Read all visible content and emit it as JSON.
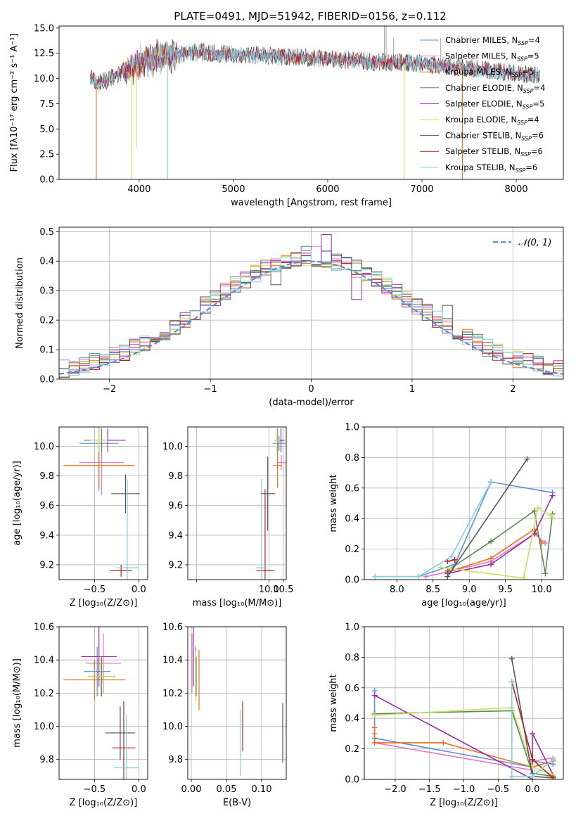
{
  "figure": {
    "title": "PLATE=0491, MJD=51942, FIBERID=0156, z=0.112",
    "colors": {
      "Chabrier MILES": "#5b8fd6",
      "Salpeter MILES": "#e377c2",
      "Kroupa MILES": "#e8701a",
      "Chabrier ELODIE": "#5a8a5a",
      "Salpeter ELODIE": "#9d2ca8",
      "Kroupa ELODIE": "#c8e05a",
      "Chabrier STELIB": "#555555",
      "Salpeter STELIB": "#b22222",
      "Kroupa STELIB": "#7fd0e0"
    }
  },
  "chart_data": [
    {
      "id": "spectrum",
      "type": "line",
      "xlabel": "wavelength [Angstrom, rest frame]",
      "ylabel": "Flux [fλ10⁻¹⁷ erg cm⁻² s⁻¹ A⁻¹]",
      "xlim": [
        3150,
        8500
      ],
      "ylim": [
        0,
        15.2
      ],
      "xticks": [
        4000,
        5000,
        6000,
        7000,
        8000
      ],
      "yticks": [
        0.0,
        2.5,
        5.0,
        7.5,
        10.0,
        12.5,
        15.0
      ],
      "xtick_labels": [
        "4000",
        "5000",
        "6000",
        "7000",
        "8000"
      ],
      "ytick_labels": [
        "0.0",
        "2.5",
        "5.0",
        "7.5",
        "10.0",
        "12.5",
        "15.0"
      ],
      "legend_position": "upper-right",
      "legend": [
        {
          "name": "Chabrier MILES",
          "sub": "4"
        },
        {
          "name": "Salpeter MILES",
          "sub": "5"
        },
        {
          "name": "Kroupa MILES",
          "sub": "5"
        },
        {
          "name": "Chabrier ELODIE",
          "sub": "4"
        },
        {
          "name": "Salpeter ELODIE",
          "sub": "5"
        },
        {
          "name": "Kroupa ELODIE",
          "sub": "4"
        },
        {
          "name": "Chabrier STELIB",
          "sub": "6"
        },
        {
          "name": "Salpeter STELIB",
          "sub": "6"
        },
        {
          "name": "Kroupa STELIB",
          "sub": "6"
        }
      ],
      "continuum": [
        [
          3480,
          10.2
        ],
        [
          3550,
          9.6
        ],
        [
          3650,
          9.8
        ],
        [
          3750,
          10.3
        ],
        [
          3850,
          10.8
        ],
        [
          3950,
          11.3
        ],
        [
          4100,
          12.0
        ],
        [
          4300,
          12.3
        ],
        [
          4500,
          12.5
        ],
        [
          4700,
          12.6
        ],
        [
          4900,
          12.4
        ],
        [
          5100,
          12.4
        ],
        [
          5300,
          12.3
        ],
        [
          5500,
          12.2
        ],
        [
          5700,
          12.1
        ],
        [
          5900,
          12.0
        ],
        [
          6100,
          11.9
        ],
        [
          6300,
          11.8
        ],
        [
          6500,
          11.6
        ],
        [
          6700,
          11.6
        ],
        [
          6900,
          11.5
        ],
        [
          7100,
          11.4
        ],
        [
          7300,
          11.2
        ],
        [
          7500,
          11.0
        ],
        [
          7700,
          10.8
        ],
        [
          7900,
          10.6
        ],
        [
          8100,
          10.4
        ],
        [
          8250,
          10.3
        ]
      ],
      "dips": [
        {
          "x": 3545,
          "y": 0.0,
          "series": "Kroupa MILES"
        },
        {
          "x": 3920,
          "y": 0.0,
          "series": "Kroupa ELODIE"
        },
        {
          "x": 3970,
          "y": 3.2,
          "series": "Kroupa ELODIE"
        },
        {
          "x": 4300,
          "y": 0.0,
          "series": "Kroupa STELIB"
        },
        {
          "x": 6810,
          "y": 0.0,
          "series": "Kroupa ELODIE"
        },
        {
          "x": 7430,
          "y": 0.0,
          "series": "Kroupa MILES"
        }
      ],
      "spikes": [
        {
          "x": 6600,
          "y": 15.2
        },
        {
          "x": 6620,
          "y": 15.2
        },
        {
          "x": 6700,
          "y": 14.0
        },
        {
          "x": 7200,
          "y": 14.0
        }
      ]
    },
    {
      "id": "residuals",
      "type": "bar",
      "xlabel": "(data-model)/error",
      "ylabel": "Normed distribution",
      "xlim": [
        -2.5,
        2.5
      ],
      "ylim": [
        0,
        0.515
      ],
      "xticks": [
        -2,
        -1,
        0,
        1,
        2
      ],
      "yticks": [
        0.0,
        0.1,
        0.2,
        0.3,
        0.4,
        0.5
      ],
      "xtick_labels": [
        "−2",
        "−1",
        "0",
        "1",
        "2"
      ],
      "ytick_labels": [
        "0.0",
        "0.1",
        "0.2",
        "0.3",
        "0.4",
        "0.5"
      ],
      "bin_width": 0.1,
      "legend_position": "upper-right",
      "reference": {
        "name": "𝒩(0, 1)",
        "mean": 0,
        "sigma": 1
      },
      "highlight_bins": [
        {
          "series": "Salpeter ELODIE",
          "x": -0.65,
          "value": 0.36
        },
        {
          "series": "Salpeter ELODIE",
          "x": 0.15,
          "value": 0.49
        },
        {
          "series": "Salpeter ELODIE",
          "x": 0.45,
          "value": 0.27
        },
        {
          "series": "Salpeter MILES",
          "x": 0.05,
          "value": 0.45
        },
        {
          "series": "Chabrier ELODIE",
          "x": -0.05,
          "value": 0.45
        },
        {
          "series": "Chabrier STELIB",
          "x": 1.35,
          "value": 0.25
        },
        {
          "series": "Chabrier STELIB",
          "x": -0.35,
          "value": 0.32
        }
      ]
    },
    {
      "id": "age-vs-Z",
      "type": "scatter",
      "xlabel": "Z [log₁₀(Z/Z⊙)]",
      "ylabel": "age  [log₁₀(age/yr)]",
      "xlim": [
        -0.9,
        0.1
      ],
      "ylim": [
        9.1,
        10.13
      ],
      "xticks": [
        -0.5,
        0.0
      ],
      "yticks": [
        9.2,
        9.4,
        9.6,
        9.8,
        10.0
      ],
      "xtick_labels": [
        "−0.5",
        "0.0"
      ],
      "ytick_labels": [
        "9.2",
        "9.4",
        "9.6",
        "9.8",
        "10.0"
      ],
      "points": [
        {
          "series": "Chabrier MILES",
          "x": -0.45,
          "xerr": 0.22,
          "y": 10.02,
          "yerr": 0.32
        },
        {
          "series": "Salpeter MILES",
          "x": -0.42,
          "xerr": 0.25,
          "y": 9.89,
          "yerr": 0.22
        },
        {
          "series": "Kroupa MILES",
          "x": -0.45,
          "xerr": 0.4,
          "y": 9.87,
          "yerr": 0.15
        },
        {
          "series": "Chabrier ELODIE",
          "x": -0.42,
          "xerr": 0.2,
          "y": 10.04,
          "yerr": 0.08
        },
        {
          "series": "Salpeter ELODIE",
          "x": -0.35,
          "xerr": 0.2,
          "y": 10.04,
          "yerr": 0.08
        },
        {
          "series": "Kroupa ELODIE",
          "x": -0.45,
          "xerr": 0.1,
          "y": 10.04,
          "yerr": 0.08
        },
        {
          "series": "Chabrier STELIB",
          "x": -0.15,
          "xerr": 0.16,
          "y": 9.68,
          "yerr": 0.13
        },
        {
          "series": "Salpeter STELIB",
          "x": -0.2,
          "xerr": 0.12,
          "y": 9.16,
          "yerr": 0.04
        },
        {
          "series": "Kroupa STELIB",
          "x": -0.13,
          "xerr": 0.12,
          "y": 9.18,
          "yerr": 0.6
        }
      ]
    },
    {
      "id": "age-vs-mass",
      "type": "scatter",
      "xlabel": "mass [log₁₀(M/M⊙)]",
      "ylabel": "",
      "xlim": [
        7.2,
        10.6
      ],
      "ylim": [
        9.1,
        10.13
      ],
      "xticks": [
        7.5,
        10.0,
        10.5
      ],
      "yticks": [
        9.2,
        9.4,
        9.6,
        9.8,
        10.0
      ],
      "xtick_labels": [
        "",
        "10.0",
        "10.5"
      ],
      "ytick_labels": [
        "9.2",
        "9.4",
        "9.6",
        "9.8",
        "10.0"
      ],
      "points": [
        {
          "series": "Chabrier MILES",
          "x": 10.35,
          "xerr": 0.22,
          "y": 10.02,
          "yerr": 0.05
        },
        {
          "series": "Salpeter MILES",
          "x": 10.43,
          "xerr": 0.15,
          "y": 9.89,
          "yerr": 0.05
        },
        {
          "series": "Kroupa MILES",
          "x": 10.3,
          "xerr": 0.15,
          "y": 9.87,
          "yerr": 0.15
        },
        {
          "series": "Chabrier ELODIE",
          "x": 10.3,
          "xerr": 0.12,
          "y": 10.04,
          "yerr": 0.08
        },
        {
          "series": "Salpeter ELODIE",
          "x": 10.42,
          "xerr": 0.12,
          "y": 10.04,
          "yerr": 0.08
        },
        {
          "series": "Kroupa ELODIE",
          "x": 10.28,
          "xerr": 0.1,
          "y": 10.04,
          "yerr": 0.08
        },
        {
          "series": "Chabrier STELIB",
          "x": 9.96,
          "xerr": 0.25,
          "y": 9.68,
          "yerr": 0.25
        },
        {
          "series": "Salpeter STELIB",
          "x": 9.87,
          "xerr": 0.3,
          "y": 9.16,
          "yerr": 0.55
        },
        {
          "series": "Kroupa STELIB",
          "x": 9.75,
          "xerr": 0.2,
          "y": 9.18,
          "yerr": 0.6
        }
      ]
    },
    {
      "id": "weight-vs-age",
      "type": "line",
      "xlabel": "age  [log₁₀(age/yr)]",
      "ylabel": "mass weight",
      "xlim": [
        7.55,
        10.3
      ],
      "ylim": [
        0,
        1.0
      ],
      "xticks": [
        8.0,
        8.5,
        9.0,
        9.5,
        10.0
      ],
      "yticks": [
        0.0,
        0.2,
        0.4,
        0.6,
        0.8,
        1.0
      ],
      "xtick_labels": [
        "8.0",
        "8.5",
        "9.0",
        "9.5",
        "10.0"
      ],
      "ytick_labels": [
        "0.0",
        "0.2",
        "0.4",
        "0.6",
        "0.8",
        "1.0"
      ],
      "series": [
        {
          "name": "Chabrier MILES",
          "x": [
            7.7,
            8.3,
            8.8,
            9.3,
            10.15
          ],
          "y": [
            0.02,
            0.02,
            0.1,
            0.64,
            0.57
          ]
        },
        {
          "name": "Salpeter MILES",
          "x": [
            8.4,
            8.7,
            9.3,
            9.9,
            10.05
          ],
          "y": [
            0.02,
            0.05,
            0.12,
            0.3,
            0.24
          ]
        },
        {
          "name": "Kroupa MILES",
          "x": [
            8.7,
            9.3,
            9.9,
            10.0
          ],
          "y": [
            0.05,
            0.14,
            0.33,
            0.24
          ]
        },
        {
          "name": "Chabrier ELODIE",
          "x": [
            8.7,
            9.3,
            9.9,
            10.05,
            10.15
          ],
          "y": [
            0.06,
            0.25,
            0.45,
            0.04,
            0.43
          ]
        },
        {
          "name": "Salpeter ELODIE",
          "x": [
            8.7,
            9.3,
            9.9,
            10.15
          ],
          "y": [
            0.04,
            0.1,
            0.3,
            0.55
          ]
        },
        {
          "name": "Kroupa ELODIE",
          "x": [
            8.6,
            9.75,
            9.95,
            10.15
          ],
          "y": [
            0.08,
            0.01,
            0.47,
            0.41
          ]
        },
        {
          "name": "Chabrier STELIB",
          "x": [
            8.7,
            9.8
          ],
          "y": [
            0.02,
            0.79
          ]
        },
        {
          "name": "Salpeter STELIB",
          "x": [
            8.7,
            8.8
          ],
          "y": [
            0.12,
            0.13
          ]
        },
        {
          "name": "Kroupa STELIB",
          "x": [
            7.7,
            8.3,
            8.75,
            9.3
          ],
          "y": [
            0.02,
            0.02,
            0.15,
            0.64
          ]
        }
      ]
    },
    {
      "id": "mass-vs-Z",
      "type": "scatter",
      "xlabel": "Z [log₁₀(Z/Z⊙)]",
      "ylabel": "mass [log₁₀(M/M⊙)]",
      "xlim": [
        -0.9,
        0.1
      ],
      "ylim": [
        9.68,
        10.6
      ],
      "xticks": [
        -0.5,
        0.0
      ],
      "yticks": [
        9.8,
        10.0,
        10.2,
        10.4,
        10.6
      ],
      "xtick_labels": [
        "−0.5",
        "0.0"
      ],
      "ytick_labels": [
        "9.8",
        "10.0",
        "10.2",
        "10.4",
        "10.6"
      ],
      "points": [
        {
          "series": "Chabrier MILES",
          "x": -0.47,
          "xerr": 0.15,
          "y": 10.33,
          "yerr": 0.15
        },
        {
          "series": "Salpeter MILES",
          "x": -0.4,
          "xerr": 0.2,
          "y": 10.38,
          "yerr": 0.18
        },
        {
          "series": "Kroupa MILES",
          "x": -0.5,
          "xerr": 0.35,
          "y": 10.28,
          "yerr": 0.12
        },
        {
          "series": "Chabrier ELODIE",
          "x": -0.42,
          "xerr": 0.15,
          "y": 10.3,
          "yerr": 0.12
        },
        {
          "series": "Salpeter ELODIE",
          "x": -0.45,
          "xerr": 0.2,
          "y": 10.42,
          "yerr": 0.18
        },
        {
          "series": "Kroupa ELODIE",
          "x": -0.43,
          "xerr": 0.15,
          "y": 10.3,
          "yerr": 0.12
        },
        {
          "series": "Chabrier STELIB",
          "x": -0.21,
          "xerr": 0.17,
          "y": 9.96,
          "yerr": 0.16
        },
        {
          "series": "Salpeter STELIB",
          "x": -0.17,
          "xerr": 0.13,
          "y": 9.87,
          "yerr": 0.28
        },
        {
          "series": "Kroupa STELIB",
          "x": -0.14,
          "xerr": 0.14,
          "y": 9.75,
          "yerr": 0.32
        }
      ]
    },
    {
      "id": "mass-vs-EBV",
      "type": "scatter",
      "xlabel": "E(B-V)",
      "ylabel": "",
      "xlim": [
        -0.005,
        0.135
      ],
      "ylim": [
        9.68,
        10.6
      ],
      "xticks": [
        0.0,
        0.05,
        0.1
      ],
      "yticks": [
        9.8,
        10.0,
        10.2,
        10.4,
        10.6
      ],
      "xtick_labels": [
        "0.00",
        "0.05",
        "0.10"
      ],
      "ytick_labels": [
        "9.8",
        "10.0",
        "10.2",
        "10.4",
        "10.6"
      ],
      "points": [
        {
          "series": "Chabrier MILES",
          "x": 0.006,
          "xerr": 0,
          "y": 10.33,
          "yerr": 0.15
        },
        {
          "series": "Salpeter MILES",
          "x": 0.001,
          "xerr": 0,
          "y": 10.38,
          "yerr": 0.18
        },
        {
          "series": "Kroupa MILES",
          "x": 0.011,
          "xerr": 0,
          "y": 10.28,
          "yerr": 0.18
        },
        {
          "series": "Chabrier ELODIE",
          "x": 0.007,
          "xerr": 0,
          "y": 10.3,
          "yerr": 0.12
        },
        {
          "series": "Salpeter ELODIE",
          "x": 0.003,
          "xerr": 0,
          "y": 10.42,
          "yerr": 0.18
        },
        {
          "series": "Kroupa ELODIE",
          "x": 0.006,
          "xerr": 0,
          "y": 10.3,
          "yerr": 0.15
        },
        {
          "series": "Chabrier STELIB",
          "x": 0.13,
          "xerr": 0,
          "y": 9.96,
          "yerr": 0.18
        },
        {
          "series": "Salpeter STELIB",
          "x": 0.073,
          "xerr": 0,
          "y": 10.0,
          "yerr": 0.15
        },
        {
          "series": "Kroupa STELIB",
          "x": 0.07,
          "xerr": 0,
          "y": 9.9,
          "yerr": 0.2
        }
      ]
    },
    {
      "id": "weight-vs-Z",
      "type": "line",
      "xlabel": "Z [log₁₀(Z/Z⊙)]",
      "ylabel": "mass weight",
      "xlim": [
        -2.45,
        0.45
      ],
      "ylim": [
        0,
        1.0
      ],
      "xticks": [
        -2.0,
        -1.5,
        -1.0,
        -0.5,
        0.0
      ],
      "yticks": [
        0.0,
        0.2,
        0.4,
        0.6,
        0.8,
        1.0
      ],
      "xtick_labels": [
        "−2.0",
        "−1.5",
        "−1.0",
        "−0.5",
        "0.0"
      ],
      "ytick_labels": [
        "0.0",
        "0.2",
        "0.4",
        "0.6",
        "0.8",
        "1.0"
      ],
      "series": [
        {
          "name": "Chabrier MILES",
          "x": [
            -2.3,
            -2.3,
            0.0,
            0.0,
            0.3
          ],
          "y": [
            0.58,
            0.27,
            0.08,
            0.12,
            0.1
          ]
        },
        {
          "name": "Salpeter MILES",
          "x": [
            -2.3,
            -2.3,
            0.0,
            0.0,
            0.3
          ],
          "y": [
            0.3,
            0.24,
            0.06,
            0.12,
            0.14
          ]
        },
        {
          "name": "Kroupa MILES",
          "x": [
            -2.3,
            -2.3,
            -1.3,
            0.0,
            0.3
          ],
          "y": [
            0.34,
            0.24,
            0.24,
            0.08,
            0.12
          ]
        },
        {
          "name": "Chabrier ELODIE",
          "x": [
            -2.3,
            -0.3,
            0.0,
            0.3
          ],
          "y": [
            0.43,
            0.45,
            0.04,
            0.02
          ]
        },
        {
          "name": "Salpeter ELODIE",
          "x": [
            -2.3,
            0.0,
            0.0,
            0.3
          ],
          "y": [
            0.55,
            0.0,
            0.3,
            0.03
          ]
        },
        {
          "name": "Kroupa ELODIE",
          "x": [
            -2.3,
            -0.3,
            0.0,
            0.3
          ],
          "y": [
            0.42,
            0.47,
            0.08,
            0.03
          ]
        },
        {
          "name": "Chabrier STELIB",
          "x": [
            -0.3,
            0.0,
            0.3
          ],
          "y": [
            0.79,
            0.02,
            0.01
          ]
        },
        {
          "name": "Salpeter STELIB",
          "x": [
            -0.3,
            0.0,
            0.3
          ],
          "y": [
            0.64,
            0.13,
            0.01
          ]
        },
        {
          "name": "Kroupa STELIB",
          "x": [
            -0.3,
            -0.3,
            0.0,
            0.3
          ],
          "y": [
            0.64,
            0.02,
            0.02,
            0.13
          ]
        }
      ]
    }
  ]
}
